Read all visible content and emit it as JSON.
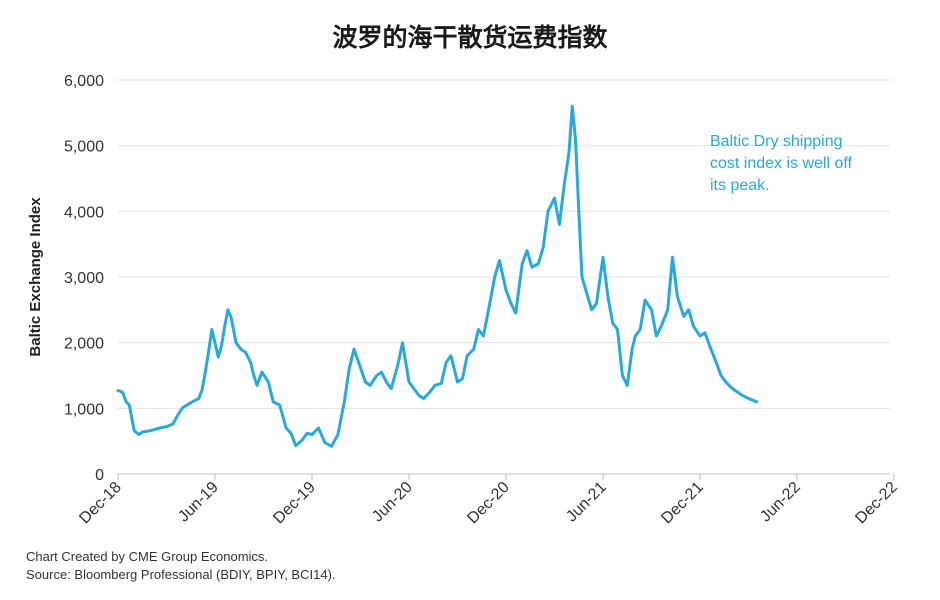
{
  "chart_data": {
    "type": "line",
    "title": "波罗的海干散货运费指数",
    "ylabel": "Baltic Exchange Index",
    "xlabel": "",
    "ylim": [
      0,
      6000
    ],
    "yticks": [
      0,
      1000,
      2000,
      3000,
      4000,
      5000,
      6000
    ],
    "ytick_labels": [
      "0",
      "1,000",
      "2,000",
      "3,000",
      "4,000",
      "5,000",
      "6,000"
    ],
    "xtick_labels": [
      "Dec-18",
      "Jun-19",
      "Dec-19",
      "Jun-20",
      "Dec-20",
      "Jun-21",
      "Dec-21",
      "Jun-22",
      "Dec-22"
    ],
    "grid": "horizontal",
    "annotation": [
      "Baltic Dry shipping",
      "cost index is well off",
      "its peak."
    ],
    "series": [
      {
        "color": "#29a8df",
        "x": [
          0,
          0.15,
          0.3,
          0.5,
          0.7,
          1.0,
          1.3,
          1.5,
          2.0,
          2.3,
          2.6,
          3.0,
          3.4,
          3.7,
          4.0,
          4.4,
          4.6,
          5.0,
          5.2,
          5.4,
          5.6,
          5.8,
          6.0,
          6.2,
          6.4,
          6.6,
          6.8,
          7.0,
          7.3,
          7.6,
          7.9,
          8.2,
          8.4,
          8.6,
          8.9,
          9.3,
          9.6,
          10.0,
          10.4,
          10.7,
          11.0,
          11.4,
          11.7,
          12.0,
          12.4,
          12.8,
          13.2,
          13.6,
          14.0,
          14.3,
          14.6,
          15.0,
          15.3,
          15.6,
          16.0,
          16.3,
          16.6,
          16.9,
          17.3,
          17.6,
          18.0,
          18.3,
          18.6,
          18.9,
          19.3,
          19.6,
          20.0,
          20.3,
          20.6,
          21.0,
          21.3,
          21.6,
          22.0,
          22.3,
          22.6,
          23.0,
          23.3,
          23.6,
          24.0,
          24.3,
          24.6,
          25.0,
          25.3,
          25.6,
          26.0,
          26.3,
          26.6,
          27.0,
          27.3,
          27.6,
          27.9,
          28.1,
          28.3,
          28.5,
          28.7,
          29.0,
          29.3,
          29.6,
          30.0,
          30.3,
          30.6,
          30.9,
          31.2,
          31.5,
          31.8,
          32.0,
          32.3,
          32.6,
          33.0,
          33.3,
          33.6,
          34.0,
          34.3,
          34.6,
          35.0,
          35.3,
          35.6,
          36.0,
          36.3,
          36.6,
          37.0,
          37.3,
          37.6,
          38.0,
          38.3,
          38.6,
          39.0,
          39.3,
          39.5
        ],
        "values": [
          1270,
          1260,
          1240,
          1100,
          1050,
          660,
          600,
          640,
          660,
          680,
          700,
          720,
          760,
          900,
          1010,
          1070,
          1100,
          1150,
          1280,
          1550,
          1850,
          2200,
          2000,
          1780,
          1950,
          2250,
          2500,
          2380,
          2000,
          1900,
          1850,
          1700,
          1500,
          1350,
          1550,
          1400,
          1100,
          1050,
          700,
          620,
          430,
          520,
          620,
          600,
          700,
          480,
          420,
          600,
          1100,
          1600,
          1900,
          1620,
          1400,
          1350,
          1500,
          1550,
          1400,
          1300,
          1650,
          2000,
          1400,
          1300,
          1200,
          1150,
          1250,
          1350,
          1380,
          1700,
          1800,
          1400,
          1450,
          1800,
          1900,
          2200,
          2100,
          2600,
          3000,
          3250,
          2800,
          2600,
          2450,
          3200,
          3400,
          3150,
          3200,
          3450,
          4000,
          4200,
          3800,
          4400,
          4900,
          5600,
          5100,
          4000,
          3000,
          2750,
          2500,
          2600,
          3300,
          2700,
          2300,
          2200,
          1500,
          1350,
          1900,
          2100,
          2200,
          2650,
          2500,
          2100,
          2250,
          2500,
          3300,
          2700,
          2400,
          2500,
          2250,
          2100,
          2150,
          1950,
          1700,
          1500,
          1400,
          1300,
          1250,
          1200,
          1150,
          1120,
          1100
        ]
      }
    ]
  },
  "credits": {
    "line1": "Chart Created by CME Group Economics.",
    "line2": "Source: Bloomberg Professional (BDIY, BPIY, BCI14)."
  }
}
